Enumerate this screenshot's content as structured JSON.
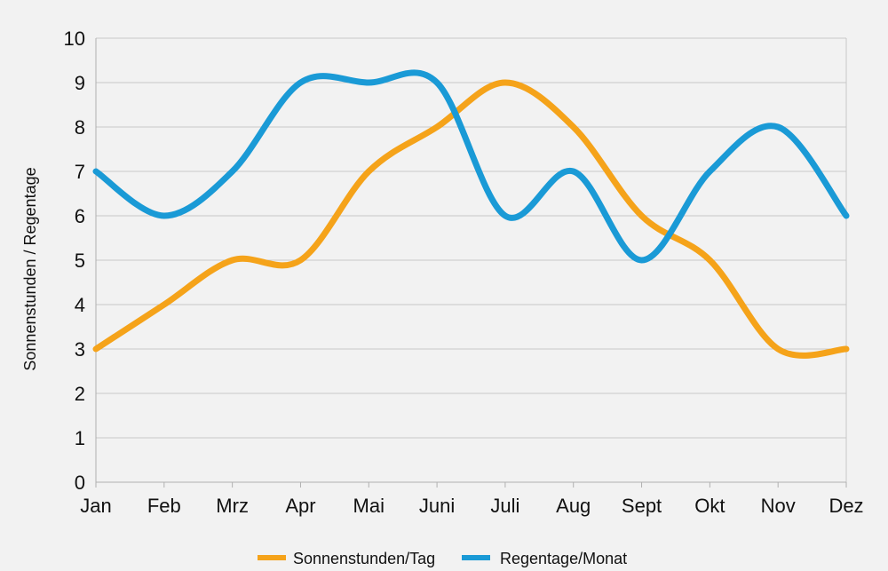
{
  "chart_data": {
    "type": "line",
    "categories": [
      "Jan",
      "Feb",
      "Mrz",
      "Apr",
      "Mai",
      "Juni",
      "Juli",
      "Aug",
      "Sept",
      "Okt",
      "Nov",
      "Dez"
    ],
    "series": [
      {
        "name": "Sonnenstunden/Tag",
        "values": [
          3,
          4,
          5,
          5,
          7,
          8,
          9,
          8,
          6,
          5,
          3,
          3
        ],
        "color": "#f5a31a"
      },
      {
        "name": "Regentage/Monat",
        "values": [
          7,
          6,
          7,
          9,
          9,
          9,
          6,
          7,
          5,
          7,
          8,
          6
        ],
        "color": "#1a9ad6"
      }
    ],
    "title": "",
    "xlabel": "",
    "ylabel": "Sonnenstunden / Regentage",
    "ylim": [
      0,
      10
    ],
    "yticks": [
      "0",
      "1",
      "2",
      "3",
      "4",
      "5",
      "6",
      "7",
      "8",
      "9",
      "10"
    ],
    "grid": true,
    "smooth": true,
    "legend_position": "bottom"
  }
}
